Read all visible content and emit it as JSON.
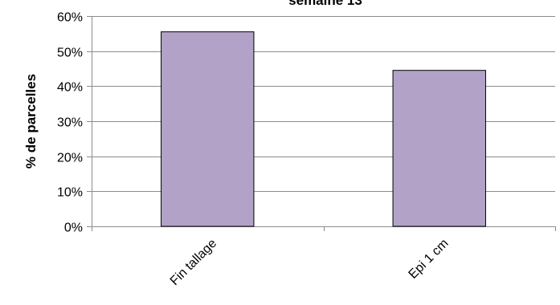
{
  "chart_data": {
    "type": "bar",
    "title": "semaine 13",
    "xlabel": "",
    "ylabel": "% de parcelles",
    "categories": [
      "Fin tallage",
      "Epi 1 cm"
    ],
    "values": [
      0.555,
      0.445
    ],
    "ylim": [
      0,
      0.6
    ],
    "yticks": [
      0,
      0.1,
      0.2,
      0.3,
      0.4,
      0.5,
      0.6
    ],
    "ytick_labels": [
      "0%",
      "10%",
      "20%",
      "30%",
      "40%",
      "50%",
      "60%"
    ],
    "grid": true,
    "bar_color": "#b3a2c7",
    "bar_edge_color": "#000000",
    "gridline_color": "#8c8c8c"
  }
}
